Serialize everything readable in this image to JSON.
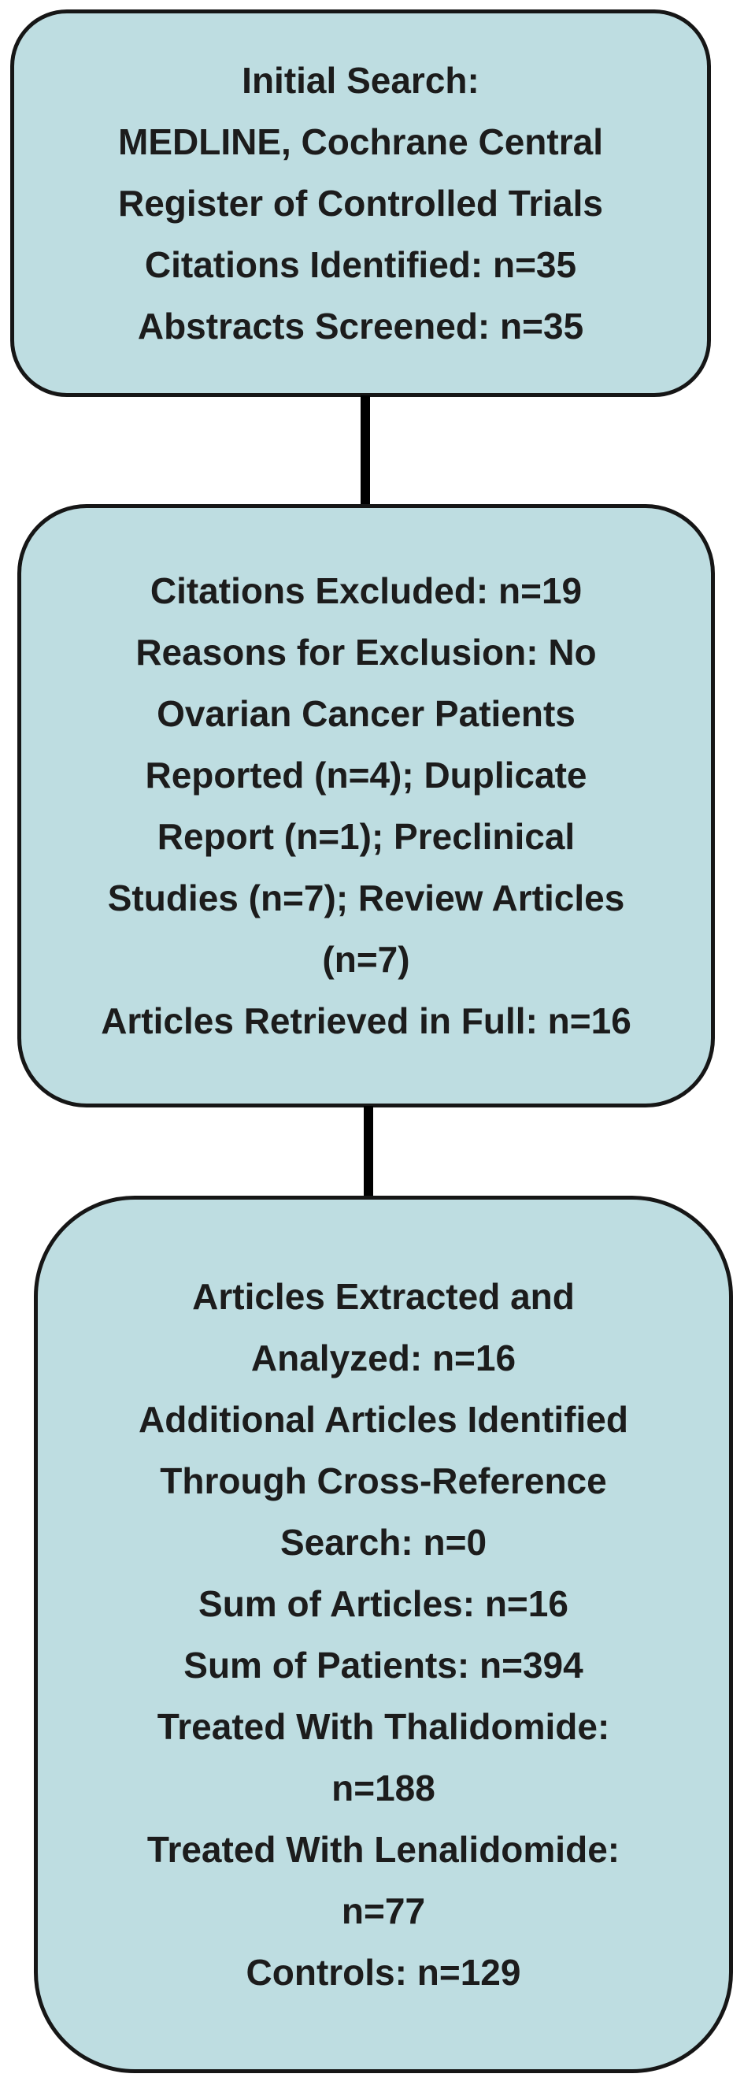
{
  "diagram": {
    "type": "flowchart",
    "direction": "top-to-bottom",
    "colors": {
      "box_fill": "#bedde1",
      "box_border": "#161616",
      "text": "#1c1c1c",
      "connector": "#000000",
      "background": "#ffffff"
    },
    "boxes": [
      {
        "id": "initial-search",
        "lines": [
          "Initial Search:",
          "MEDLINE, Cochrane Central",
          "Register of Controlled Trials",
          "Citations Identified: n=35",
          "Abstracts Screened: n=35"
        ]
      },
      {
        "id": "citations-excluded",
        "lines": [
          "Citations Excluded: n=19",
          "Reasons for Exclusion: No",
          "Ovarian Cancer Patients",
          "Reported (n=4); Duplicate",
          "Report (n=1); Preclinical",
          "Studies (n=7); Review Articles",
          "(n=7)",
          "Articles Retrieved in Full: n=16"
        ]
      },
      {
        "id": "articles-extracted",
        "lines": [
          "Articles Extracted and",
          "Analyzed: n=16",
          "Additional Articles Identified",
          "Through Cross-Reference",
          "Search: n=0",
          "Sum of Articles: n=16",
          "Sum of Patients: n=394",
          "Treated With Thalidomide:",
          "n=188",
          "Treated With Lenalidomide:",
          "n=77",
          "Controls: n=129"
        ]
      }
    ]
  }
}
